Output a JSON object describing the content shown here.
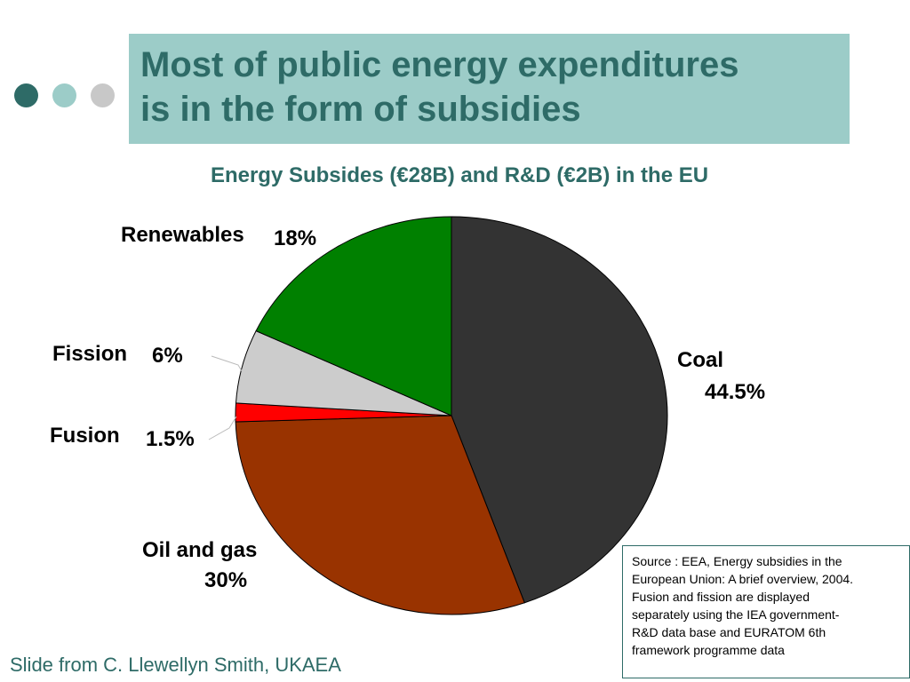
{
  "colors": {
    "title_bg": "#9cccc8",
    "title_text": "#2e6b67",
    "dots": [
      "#2e6b67",
      "#9cccc8",
      "#c8c8c8"
    ]
  },
  "slide": {
    "title_lines": [
      "Most of public energy expenditures",
      "is in the form of subsidies"
    ],
    "source_lines": [
      "Source : EEA, Energy subsidies in the",
      "European Union: A brief overview, 2004.",
      "Fusion and fission are displayed",
      "separately using the IEA government-",
      "R&D data base and EURATOM 6th",
      "framework programme data"
    ],
    "credit": "Slide from C. Llewellyn Smith, UKAEA"
  },
  "chart_data": {
    "type": "pie",
    "title": "Energy Subsides (€28B) and R&D (€2B) in the EU",
    "start_angle_deg": 0,
    "direction": "clockwise",
    "series": [
      {
        "name": "Coal",
        "value": 44.5,
        "label": "44.5%",
        "color": "#333333"
      },
      {
        "name": "Oil and gas",
        "value": 30,
        "label": "30%",
        "color": "#993300"
      },
      {
        "name": "Fusion",
        "value": 1.5,
        "label": "1.5%",
        "color": "#ff0000"
      },
      {
        "name": "Fission",
        "value": 6,
        "label": "6%",
        "color": "#cccccc"
      },
      {
        "name": "Renewables",
        "value": 18,
        "label": "18%",
        "color": "#008000"
      }
    ]
  }
}
